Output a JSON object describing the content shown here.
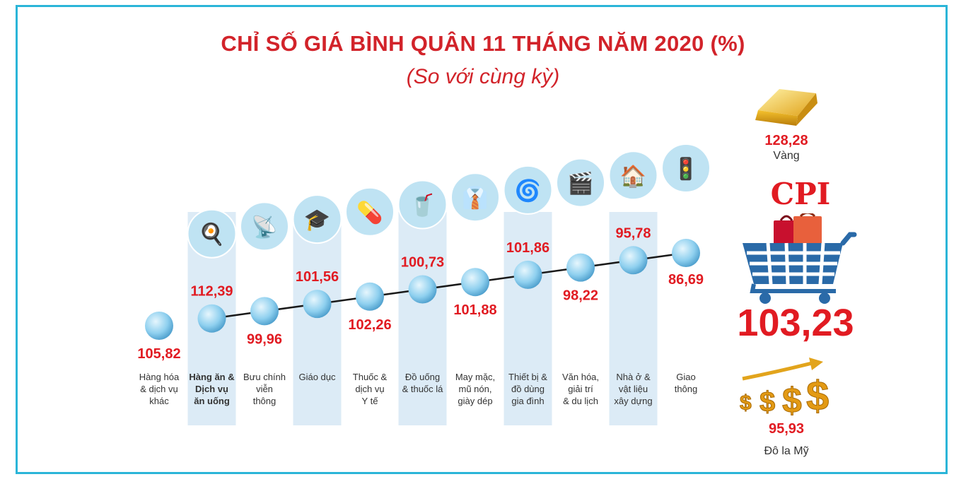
{
  "title": "CHỈ SỐ GIÁ BÌNH QUÂN 11 THÁNG NĂM 2020 (%)",
  "subtitle": "(So với cùng kỳ)",
  "colors": {
    "accent_red": "#e11b22",
    "frame_blue": "#2bb5d8",
    "column_shade": "#dcebf6",
    "node_blue": "#8fd0ef"
  },
  "chart_data": {
    "type": "line",
    "title": "CHỈ SỐ GIÁ BÌNH QUÂN 11 THÁNG NĂM 2020 (%)",
    "subtitle": "(So với cùng kỳ)",
    "categories": [
      [
        "Hàng hóa",
        "& dịch vụ",
        "khác"
      ],
      [
        "Hàng ăn &",
        "Dịch vụ",
        "ăn uống"
      ],
      [
        "Bưu chính",
        "viễn",
        "thông"
      ],
      [
        "Giáo dục"
      ],
      [
        "Thuốc &",
        "dịch vụ",
        "Y tế"
      ],
      [
        "Đồ uống",
        "& thuốc lá"
      ],
      [
        "May mặc,",
        "mũ nón,",
        "giày dép"
      ],
      [
        "Thiết bị &",
        "đồ dùng",
        "gia đình"
      ],
      [
        "Văn hóa,",
        "giải trí",
        "& du lịch"
      ],
      [
        "Nhà ở &",
        "vật liệu",
        "xây dựng"
      ],
      [
        "Giao",
        "thông"
      ]
    ],
    "values": [
      105.82,
      112.39,
      99.96,
      101.56,
      102.26,
      100.73,
      101.88,
      101.86,
      98.22,
      95.78,
      86.69
    ],
    "value_labels": [
      "105,82",
      "112,39",
      "99,96",
      "101,56",
      "102,26",
      "100,73",
      "101,88",
      "101,86",
      "98,22",
      "95,78",
      "86,69"
    ],
    "icons": [
      "none",
      "food-plate-icon",
      "radio-tower-icon",
      "graduation-cap-icon",
      "pill-capsule-icon",
      "drink-cigarette-icon",
      "shirt-shoes-icon",
      "washing-machine-icon",
      "clapperboard-icon",
      "house-icon",
      "traffic-light-icon"
    ],
    "shaded_columns": [
      1,
      3,
      5,
      7,
      9
    ]
  },
  "side": {
    "gold": {
      "value": "128,28",
      "name": "Vàng",
      "icon": "gold-bar-icon"
    },
    "cpi": {
      "label": "CPI",
      "value": "103,23",
      "icon": "shopping-cart-icon"
    },
    "usd": {
      "value": "95,93",
      "name": "Đô la Mỹ",
      "icon": "dollar-signs-icon"
    }
  }
}
